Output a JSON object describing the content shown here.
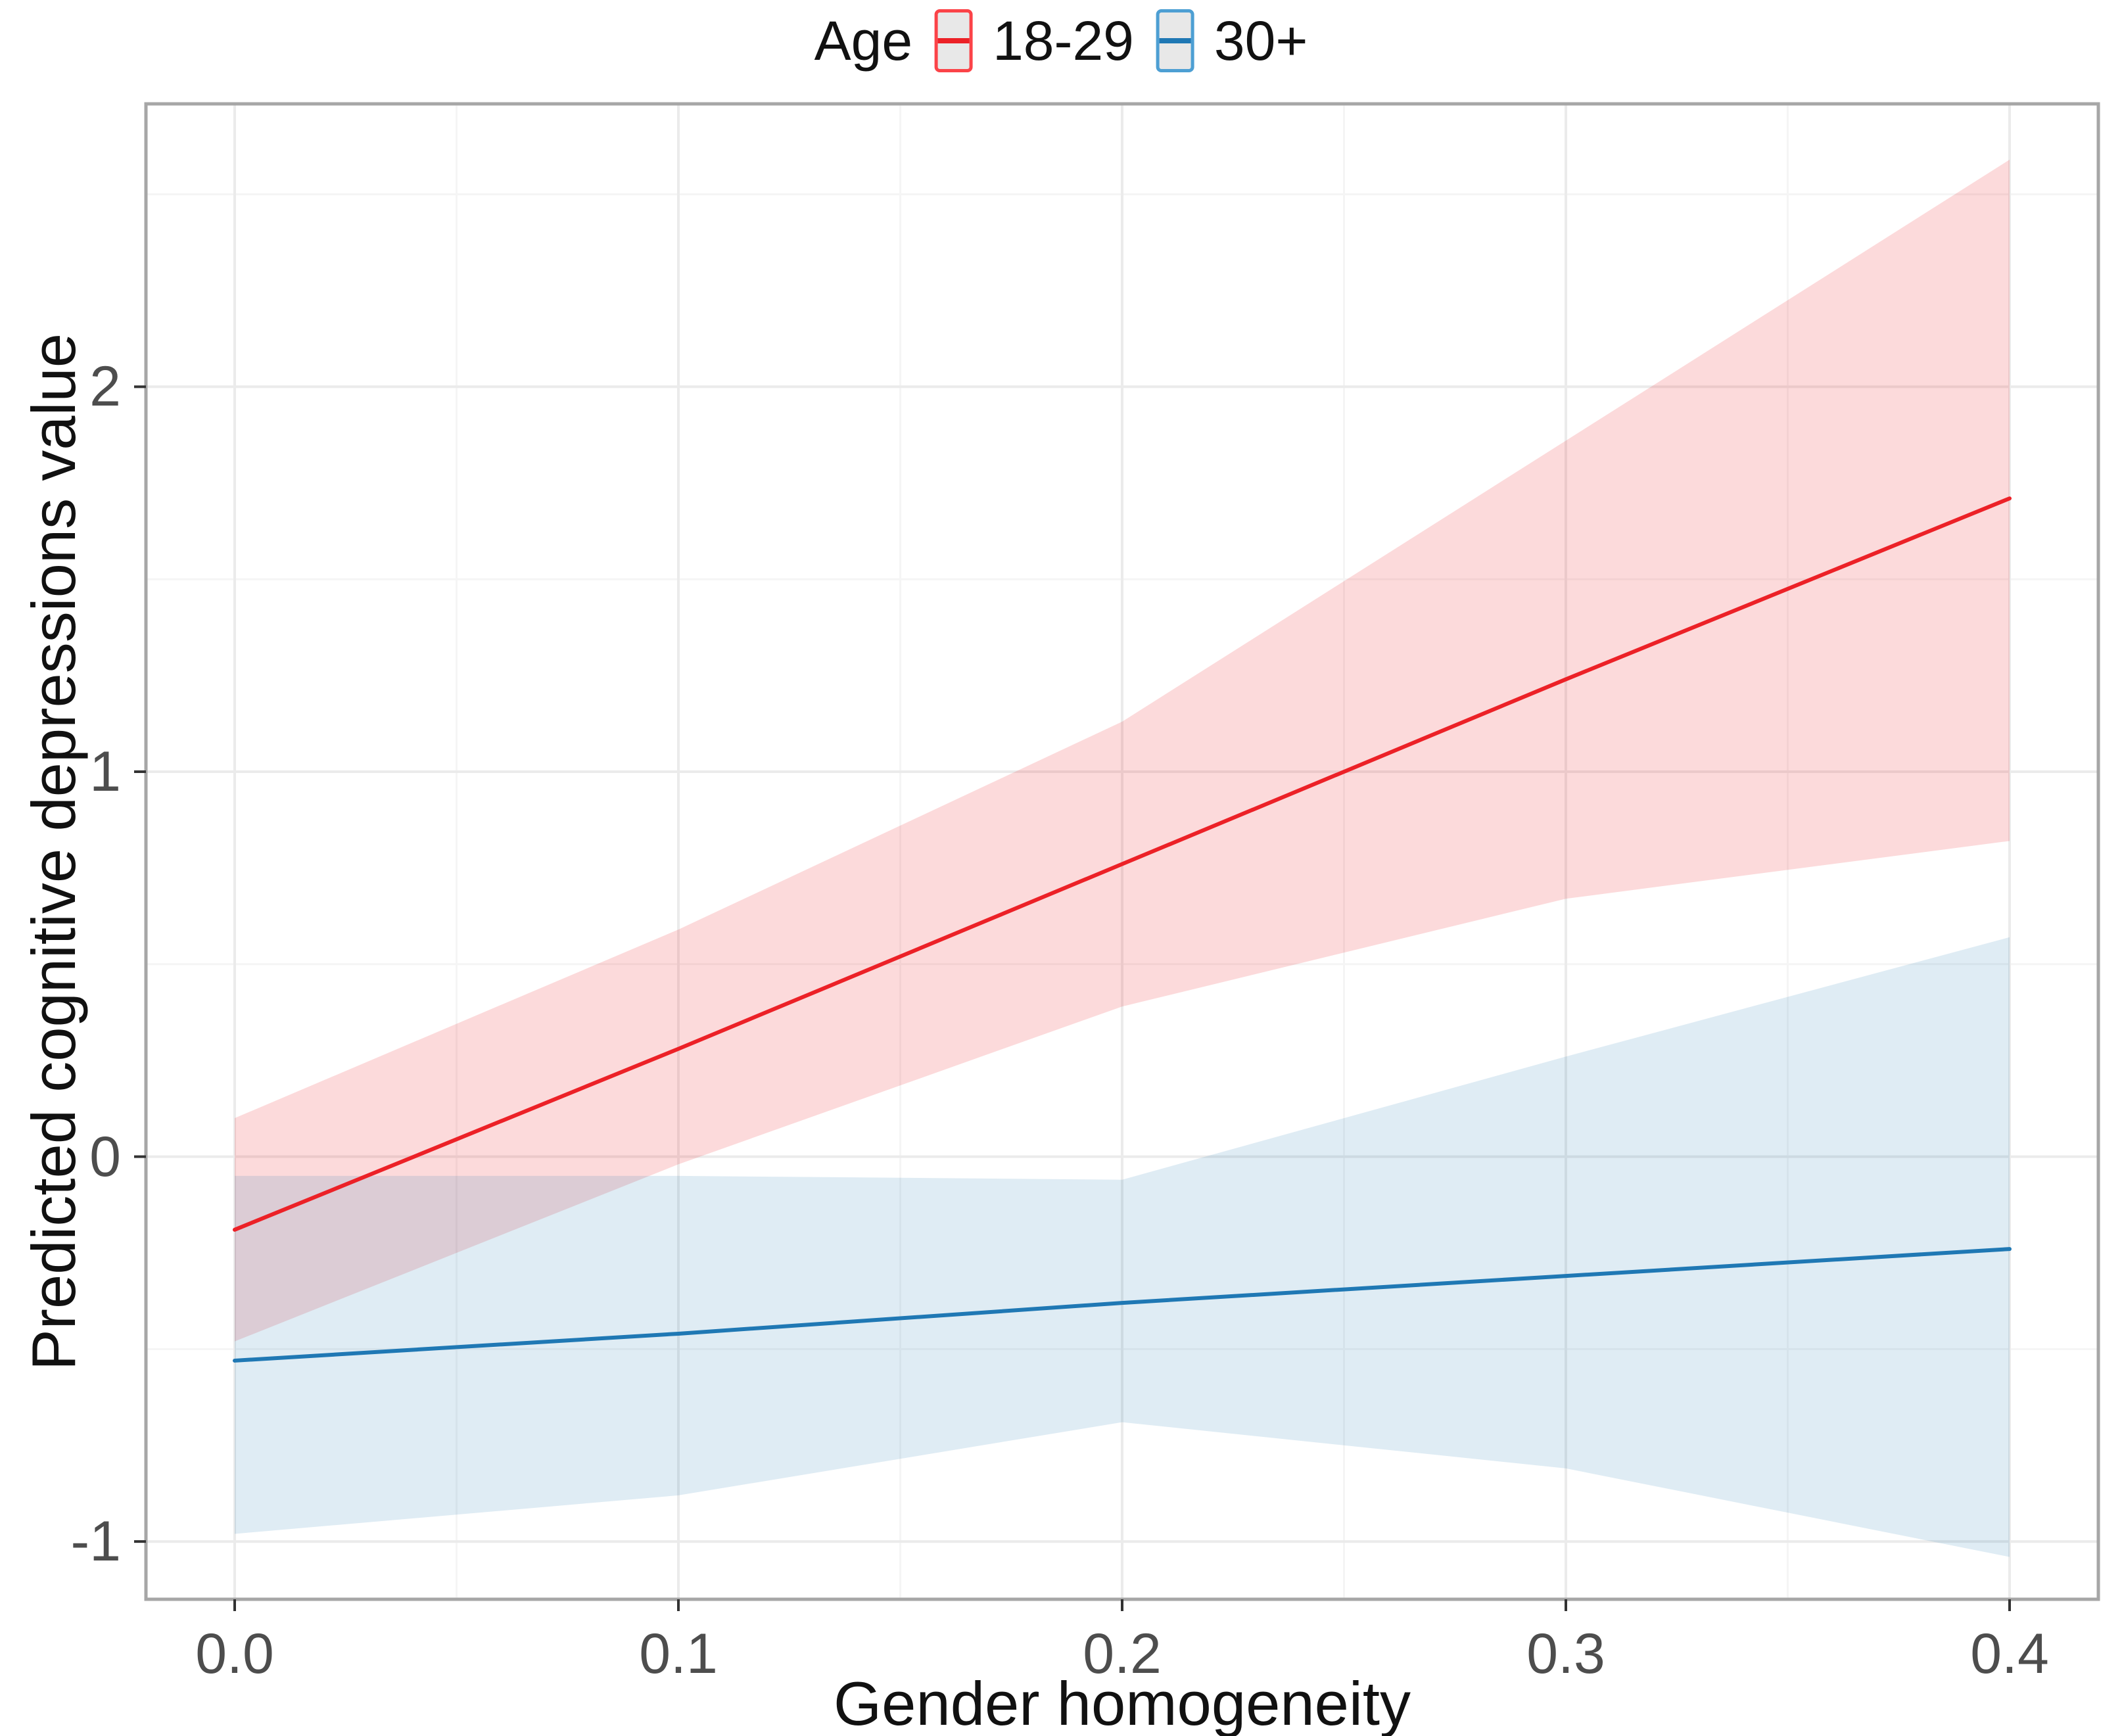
{
  "chart_data": {
    "type": "line",
    "title": "",
    "xlabel": "Gender homogeneity",
    "ylabel": "Predicted cognitive depressions value",
    "legend_title": "Age",
    "legend_position": "top-center",
    "grid": "major+minor",
    "x": [
      0.0,
      0.1,
      0.2,
      0.3,
      0.4
    ],
    "series": [
      {
        "name": "18-29",
        "values": [
          -0.19,
          0.28,
          0.76,
          1.24,
          1.71
        ],
        "ci_upper": [
          0.1,
          0.59,
          1.13,
          1.86,
          2.59
        ],
        "ci_lower": [
          -0.48,
          -0.02,
          0.39,
          0.67,
          0.82
        ],
        "line_color": "#EC2127",
        "key_border_color": "#FB4348",
        "fill_color": "rgba(236,33,39,0.17)"
      },
      {
        "name": "30+",
        "values": [
          -0.53,
          -0.46,
          -0.38,
          -0.31,
          -0.24
        ],
        "ci_upper": [
          -0.05,
          -0.05,
          -0.06,
          0.26,
          0.57
        ],
        "ci_lower": [
          -0.98,
          -0.88,
          -0.69,
          -0.81,
          -1.04
        ],
        "line_color": "#1F78B4",
        "key_border_color": "#4D9FD3",
        "fill_color": "rgba(31,120,180,0.14)"
      }
    ],
    "xlim": [
      -0.02,
      0.42
    ],
    "ylim": [
      -1.15,
      2.735
    ],
    "x_ticks": {
      "values": [
        0.0,
        0.1,
        0.2,
        0.3,
        0.4
      ],
      "labels": [
        "0.0",
        "0.1",
        "0.2",
        "0.3",
        "0.4"
      ],
      "minor": [
        0.05,
        0.15,
        0.25,
        0.35
      ]
    },
    "y_ticks": {
      "values": [
        2,
        1,
        0,
        -1
      ],
      "labels": [
        "2",
        "1",
        "0",
        "-1"
      ],
      "minor": [
        2.5,
        1.5,
        0.5,
        -0.5
      ]
    }
  },
  "colors": {
    "background": "#FFFFFF",
    "panel_background": "#FFFFFF",
    "grid_major": "#EBEBEB",
    "grid_minor": "#F5F5F5",
    "panel_border": "#A6A6A6",
    "tick_mark": "#333333",
    "tick_label": "#4D4D4D",
    "axis_title": "#111111"
  },
  "legend": {
    "key_fill": "#E8E8E8"
  }
}
